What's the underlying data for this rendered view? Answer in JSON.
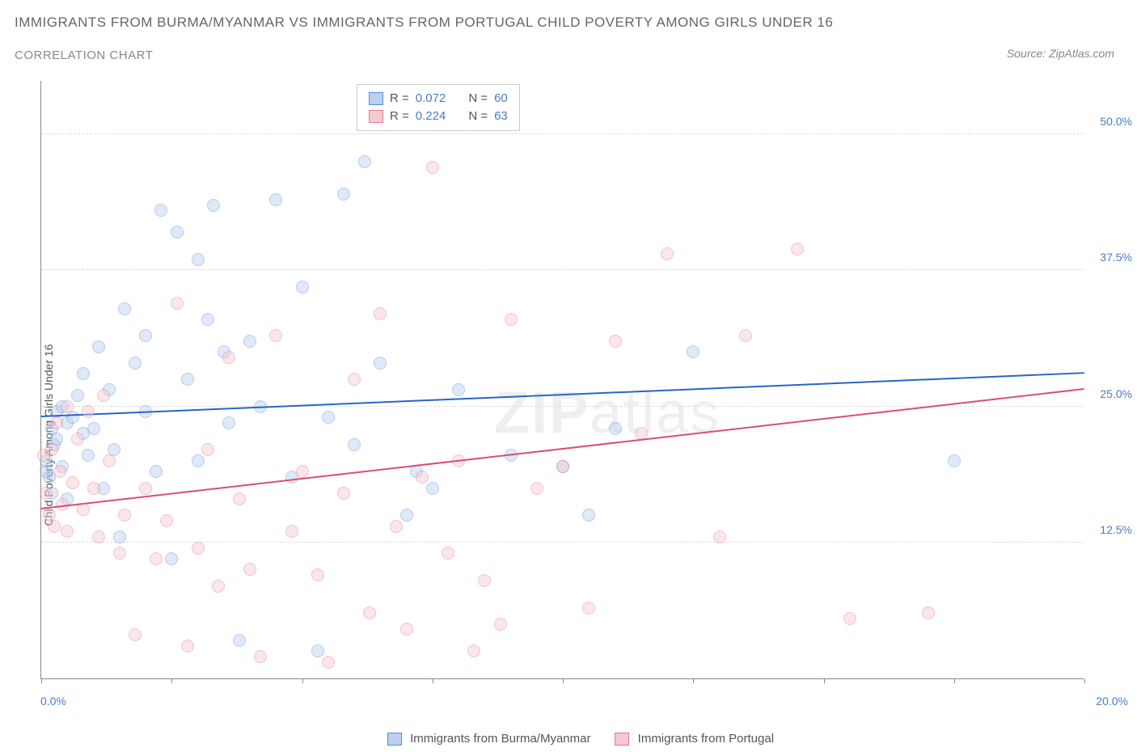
{
  "title_main": "IMMIGRANTS FROM BURMA/MYANMAR VS IMMIGRANTS FROM PORTUGAL CHILD POVERTY AMONG GIRLS UNDER 16",
  "title_sub": "CORRELATION CHART",
  "source_label": "Source: ZipAtlas.com",
  "y_axis_label": "Child Poverty Among Girls Under 16",
  "watermark_bold": "ZIP",
  "watermark_thin": "atlas",
  "chart": {
    "type": "scatter",
    "xlim": [
      0,
      20
    ],
    "ylim": [
      0,
      55
    ],
    "x_ticks": [
      0,
      2.5,
      5,
      7.5,
      10,
      12.5,
      15,
      17.5,
      20
    ],
    "x_tick_labels_shown": {
      "0": "0.0%",
      "20": "20.0%"
    },
    "y_gridlines": [
      12.5,
      25.0,
      37.5,
      50.0
    ],
    "y_tick_labels": [
      "12.5%",
      "25.0%",
      "37.5%",
      "50.0%"
    ],
    "background_color": "#ffffff",
    "grid_color": "#dddddd",
    "axis_color": "#888888",
    "label_color": "#4a7bc8",
    "marker_radius": 8,
    "marker_opacity": 0.45,
    "series": [
      {
        "name": "Immigrants from Burma/Myanmar",
        "color_fill": "#b9d0ee",
        "color_stroke": "#5b8fd6",
        "R": "0.072",
        "N": "60",
        "trend": {
          "y_at_x0": 24.0,
          "y_at_xmax": 28.0,
          "color": "#2a66c4",
          "width": 2
        },
        "points": [
          [
            0.1,
            19.0
          ],
          [
            0.1,
            20.0
          ],
          [
            0.15,
            18.5
          ],
          [
            0.2,
            23.0
          ],
          [
            0.2,
            17.0
          ],
          [
            0.25,
            21.5
          ],
          [
            0.3,
            24.5
          ],
          [
            0.3,
            22.0
          ],
          [
            0.4,
            25.0
          ],
          [
            0.4,
            19.5
          ],
          [
            0.5,
            23.5
          ],
          [
            0.5,
            16.5
          ],
          [
            0.6,
            24.0
          ],
          [
            0.7,
            26.0
          ],
          [
            0.8,
            22.5
          ],
          [
            0.8,
            28.0
          ],
          [
            0.9,
            20.5
          ],
          [
            1.0,
            23.0
          ],
          [
            1.1,
            30.5
          ],
          [
            1.2,
            17.5
          ],
          [
            1.3,
            26.5
          ],
          [
            1.4,
            21.0
          ],
          [
            1.5,
            13.0
          ],
          [
            1.6,
            34.0
          ],
          [
            1.8,
            29.0
          ],
          [
            2.0,
            31.5
          ],
          [
            2.0,
            24.5
          ],
          [
            2.2,
            19.0
          ],
          [
            2.3,
            43.0
          ],
          [
            2.5,
            11.0
          ],
          [
            2.6,
            41.0
          ],
          [
            2.8,
            27.5
          ],
          [
            3.0,
            20.0
          ],
          [
            3.0,
            38.5
          ],
          [
            3.2,
            33.0
          ],
          [
            3.3,
            43.5
          ],
          [
            3.5,
            30.0
          ],
          [
            3.6,
            23.5
          ],
          [
            3.8,
            3.5
          ],
          [
            4.0,
            31.0
          ],
          [
            4.2,
            25.0
          ],
          [
            4.5,
            44.0
          ],
          [
            4.8,
            18.5
          ],
          [
            5.0,
            36.0
          ],
          [
            5.3,
            2.5
          ],
          [
            5.5,
            24.0
          ],
          [
            5.8,
            44.5
          ],
          [
            6.0,
            21.5
          ],
          [
            6.2,
            47.5
          ],
          [
            6.5,
            29.0
          ],
          [
            7.0,
            15.0
          ],
          [
            7.2,
            19.0
          ],
          [
            7.5,
            17.5
          ],
          [
            8.0,
            26.5
          ],
          [
            9.0,
            20.5
          ],
          [
            10.0,
            19.5
          ],
          [
            10.5,
            15.0
          ],
          [
            11.0,
            23.0
          ],
          [
            12.5,
            30.0
          ],
          [
            17.5,
            20.0
          ]
        ]
      },
      {
        "name": "Immigrants from Portugal",
        "color_fill": "#f5c9d3",
        "color_stroke": "#e07a94",
        "R": "0.224",
        "N": "63",
        "trend": {
          "y_at_x0": 15.5,
          "y_at_xmax": 26.5,
          "color": "#d94f70",
          "width": 2
        },
        "points": [
          [
            0.05,
            20.5
          ],
          [
            0.1,
            17.0
          ],
          [
            0.15,
            15.0
          ],
          [
            0.2,
            21.0
          ],
          [
            0.25,
            14.0
          ],
          [
            0.3,
            23.5
          ],
          [
            0.35,
            19.0
          ],
          [
            0.4,
            16.0
          ],
          [
            0.5,
            13.5
          ],
          [
            0.5,
            25.0
          ],
          [
            0.6,
            18.0
          ],
          [
            0.7,
            22.0
          ],
          [
            0.8,
            15.5
          ],
          [
            0.9,
            24.5
          ],
          [
            1.0,
            17.5
          ],
          [
            1.1,
            13.0
          ],
          [
            1.2,
            26.0
          ],
          [
            1.3,
            20.0
          ],
          [
            1.5,
            11.5
          ],
          [
            1.6,
            15.0
          ],
          [
            1.8,
            4.0
          ],
          [
            2.0,
            17.5
          ],
          [
            2.2,
            11.0
          ],
          [
            2.4,
            14.5
          ],
          [
            2.6,
            34.5
          ],
          [
            2.8,
            3.0
          ],
          [
            3.0,
            12.0
          ],
          [
            3.2,
            21.0
          ],
          [
            3.4,
            8.5
          ],
          [
            3.6,
            29.5
          ],
          [
            3.8,
            16.5
          ],
          [
            4.0,
            10.0
          ],
          [
            4.2,
            2.0
          ],
          [
            4.5,
            31.5
          ],
          [
            4.8,
            13.5
          ],
          [
            5.0,
            19.0
          ],
          [
            5.3,
            9.5
          ],
          [
            5.5,
            1.5
          ],
          [
            5.8,
            17.0
          ],
          [
            6.0,
            27.5
          ],
          [
            6.3,
            6.0
          ],
          [
            6.5,
            33.5
          ],
          [
            6.8,
            14.0
          ],
          [
            7.0,
            4.5
          ],
          [
            7.3,
            18.5
          ],
          [
            7.5,
            47.0
          ],
          [
            7.8,
            11.5
          ],
          [
            8.0,
            20.0
          ],
          [
            8.3,
            2.5
          ],
          [
            8.5,
            9.0
          ],
          [
            8.8,
            5.0
          ],
          [
            9.0,
            33.0
          ],
          [
            9.5,
            17.5
          ],
          [
            10.0,
            19.5
          ],
          [
            10.5,
            6.5
          ],
          [
            11.0,
            31.0
          ],
          [
            11.5,
            22.5
          ],
          [
            12.0,
            39.0
          ],
          [
            13.0,
            13.0
          ],
          [
            13.5,
            31.5
          ],
          [
            14.5,
            39.5
          ],
          [
            15.5,
            5.5
          ],
          [
            17.0,
            6.0
          ]
        ]
      }
    ]
  },
  "legend_box": {
    "r_label": "R =",
    "n_label": "N ="
  }
}
